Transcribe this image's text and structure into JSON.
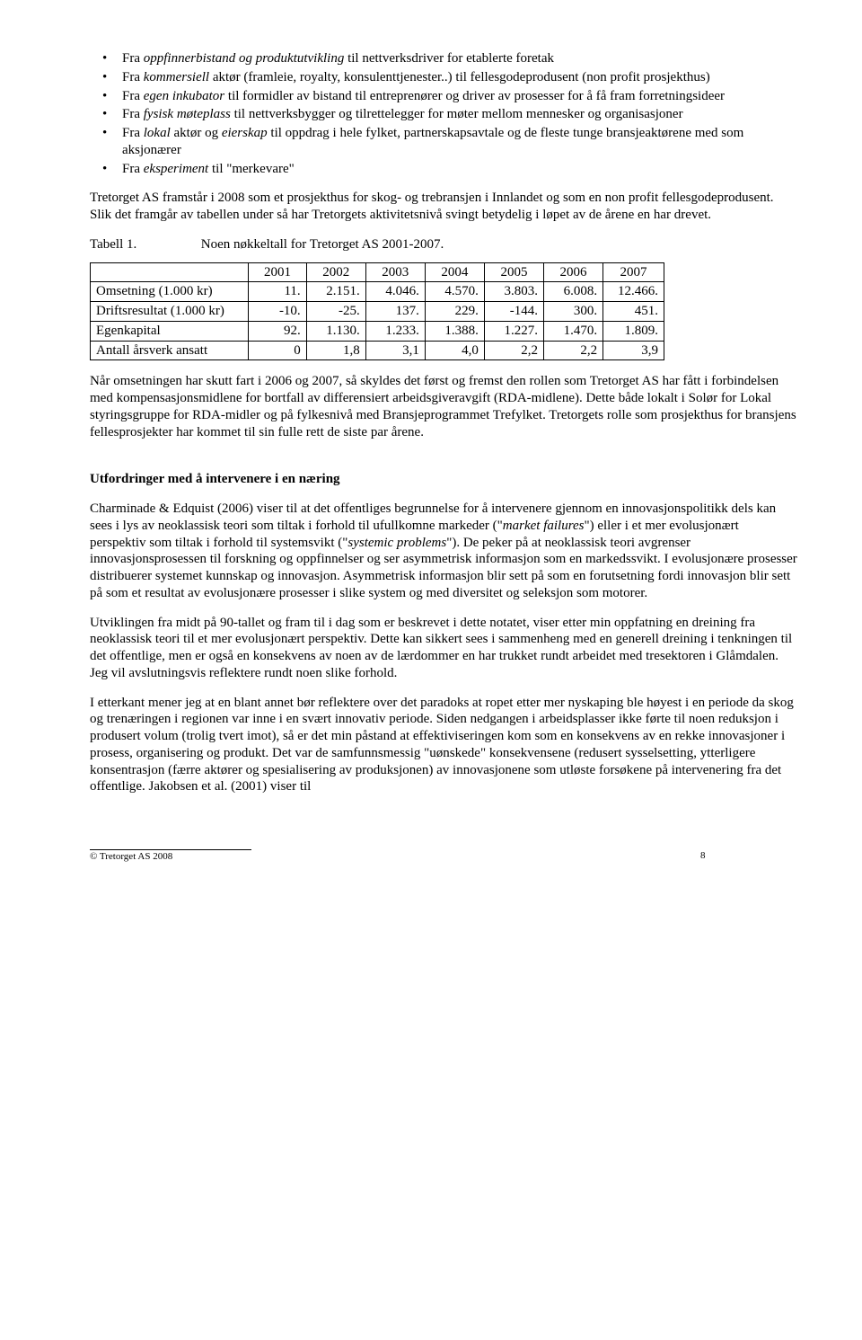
{
  "bullets": [
    {
      "pre": "Fra ",
      "em1": "oppfinnerbistand og produktutvikling",
      "mid": " til nettverksdriver for etablerte foretak"
    },
    {
      "pre": "Fra ",
      "em1": "kommersiell",
      "mid": " aktør (framleie, royalty, konsulenttjenester..) til fellesgodeprodusent (non profit prosjekthus)"
    },
    {
      "pre": "Fra ",
      "em1": "egen inkubator",
      "mid": " til formidler av bistand til entreprenører og driver av prosesser for å få fram forretningsideer"
    },
    {
      "pre": "Fra ",
      "em1": "fysisk møteplass",
      "mid": " til nettverksbygger og tilrettelegger for møter mellom mennesker og organisasjoner"
    },
    {
      "pre": "Fra ",
      "em1": "lokal",
      "mid": " aktør og ",
      "em2": "eierskap",
      "post": " til oppdrag i hele fylket, partnerskapsavtale og de fleste tunge bransjeaktørene med som aksjonærer"
    },
    {
      "pre": "Fra ",
      "em1": "eksperiment",
      "mid": " til \"merkevare\""
    }
  ],
  "para1": "Tretorget AS framstår i 2008 som et prosjekthus for skog- og trebransjen i Innlandet og som en non profit fellesgodeprodusent. Slik det framgår av tabellen under så har Tretorgets aktivitetsnivå svingt betydelig i løpet av de årene en har drevet.",
  "tableCaption": {
    "label": "Tabell 1.",
    "text": "Noen nøkkeltall for Tretorget AS 2001-2007."
  },
  "table": {
    "years": [
      "2001",
      "2002",
      "2003",
      "2004",
      "2005",
      "2006",
      "2007"
    ],
    "rows": [
      {
        "label": "Omsetning (1.000 kr)",
        "vals": [
          "11.",
          "2.151.",
          "4.046.",
          "4.570.",
          "3.803.",
          "6.008.",
          "12.466."
        ]
      },
      {
        "label": "Driftsresultat (1.000 kr)",
        "vals": [
          "-10.",
          "-25.",
          "137.",
          "229.",
          "-144.",
          "300.",
          "451."
        ]
      },
      {
        "label": "Egenkapital",
        "vals": [
          "92.",
          "1.130.",
          "1.233.",
          "1.388.",
          "1.227.",
          "1.470.",
          "1.809."
        ]
      },
      {
        "label": "Antall årsverk ansatt",
        "vals": [
          "0",
          "1,8",
          "3,1",
          "4,0",
          "2,2",
          "2,2",
          "3,9"
        ]
      }
    ]
  },
  "para2": "Når omsetningen har skutt fart i 2006 og 2007, så skyldes det først og fremst den rollen som Tretorget AS har fått i forbindelsen med kompensasjonsmidlene for bortfall av differensiert arbeidsgiveravgift (RDA-midlene). Dette både lokalt i Solør for Lokal styringsgruppe for RDA-midler og på fylkesnivå med Bransjeprogrammet Trefylket. Tretorgets rolle som prosjekthus for bransjens fellesprosjekter har kommet til sin fulle rett de siste par årene.",
  "sectionTitle": "Utfordringer med å intervenere i en næring",
  "para3": {
    "t1": "Charminade & Edquist (2006) viser til at det offentliges begrunnelse for å intervenere gjennom en innovasjonspolitikk dels kan sees i lys av neoklassisk teori som tiltak i forhold til ufullkomne markeder (\"",
    "em1": "market failures",
    "t2": "\") eller i et mer evolusjonært perspektiv som tiltak i forhold til systemsvikt (\"",
    "em2": "systemic problems",
    "t3": "\"). De peker på at neoklassisk teori avgrenser innovasjonsprosessen til forskning og oppfinnelser og ser asymmetrisk informasjon som en markedssvikt. I evolusjonære prosesser distribuerer systemet kunnskap og innovasjon. Asymmetrisk informasjon blir sett på som en forutsetning fordi innovasjon blir sett på som et resultat av evolusjonære prosesser i slike system og med diversitet og seleksjon som motorer."
  },
  "para4": "Utviklingen fra midt på 90-tallet og fram til i dag som er beskrevet i dette notatet, viser etter min oppfatning en dreining fra neoklassisk teori til et mer evolusjonært perspektiv. Dette kan sikkert sees i sammenheng med en generell dreining i tenkningen til det offentlige, men er også en konsekvens av noen av de lærdommer en har trukket rundt arbeidet med tresektoren i Glåmdalen. Jeg vil avslutningsvis reflektere rundt noen slike forhold.",
  "para5": "I etterkant mener jeg at en blant annet bør reflektere over det paradoks at ropet etter mer nyskaping ble høyest i en periode da skog og trenæringen i regionen var inne i en svært innovativ periode. Siden nedgangen i arbeidsplasser ikke førte til noen reduksjon i produsert volum (trolig tvert imot), så er det min påstand at effektiviseringen kom som en konsekvens av en rekke innovasjoner i prosess, organisering og produkt. Det var de samfunnsmessig \"uønskede\" konsekvensene (redusert sysselsetting, ytterligere konsentrasjon (færre aktører og spesialisering av produksjonen) av innovasjonene som utløste forsøkene på intervenering fra det offentlige. Jakobsen et al. (2001) viser til",
  "footer": {
    "org": "© Tretorget AS 2008",
    "page": "8"
  }
}
